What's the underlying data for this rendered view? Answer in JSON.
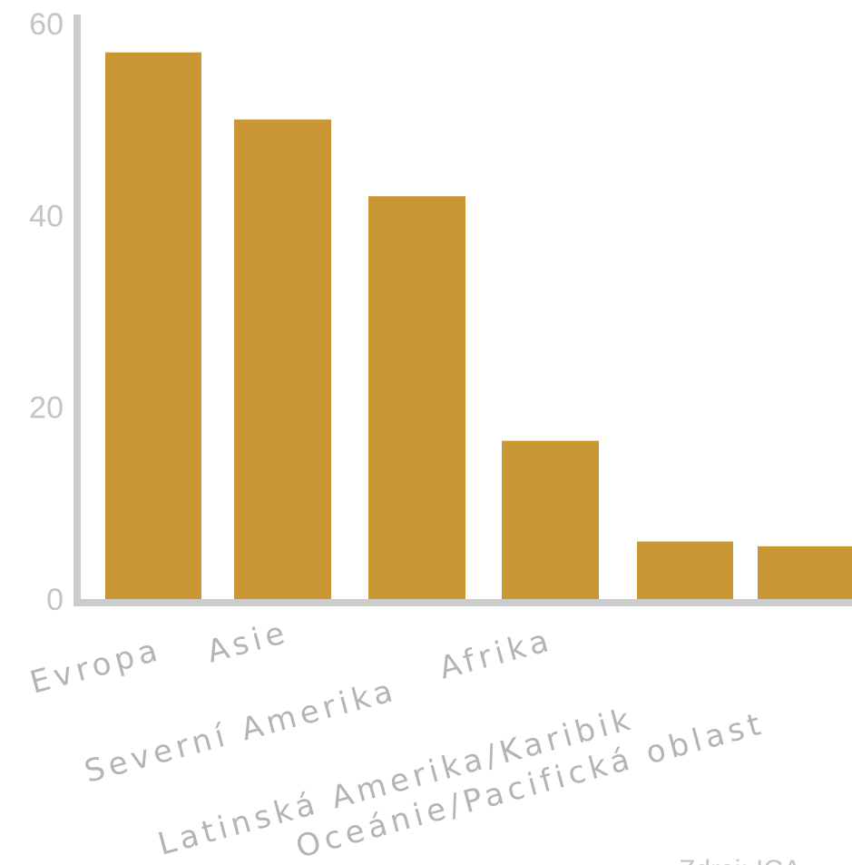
{
  "chart_data": {
    "type": "bar",
    "categories": [
      "Evropa",
      "Asie",
      "Severní Amerika",
      "Afrika",
      "Latinská Amerika/Karibik",
      "Oceánie/Pacifická oblast"
    ],
    "values": [
      57,
      50,
      42,
      16.5,
      6,
      5.5
    ],
    "ylim": [
      0,
      60
    ],
    "yticks": [
      0,
      20,
      40,
      60
    ],
    "grid": false,
    "legend": "none",
    "source": "Zdroj: ICA",
    "colors": {
      "bar": "#c99834",
      "axis": "#cccccc",
      "text": "#c4c4c4"
    }
  }
}
